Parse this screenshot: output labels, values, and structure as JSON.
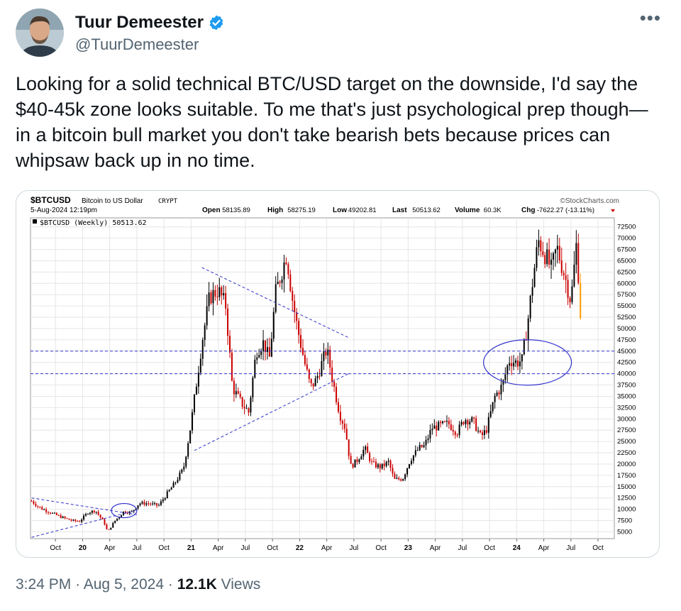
{
  "author": {
    "name": "Tuur Demeester",
    "handle": "@TuurDemeester",
    "avatar_icon": "profile-photo"
  },
  "tweet": {
    "text": "Looking for a solid technical BTC/USD target on the downside, I'd say the $40-45k zone looks suitable. To me that's just psychological prep though—in a bitcoin bull market you don't take bearish bets because prices can whipsaw back up in no time."
  },
  "meta": {
    "time": "3:24 PM",
    "date": "Aug 5, 2024",
    "views_count": "12.1K",
    "views_label": "Views",
    "sep": "·"
  },
  "chart_data": {
    "type": "candlestick",
    "symbol": "$BTCUSD",
    "symbol_desc": "Bitcoin to US Dollar",
    "exchange": "CRYPT",
    "source": "©StockCharts.com",
    "datetime": "5-Aug-2024 12:19pm",
    "stats": {
      "open_label": "Open",
      "open": "58135.89",
      "high_label": "High",
      "high": "58275.19",
      "low_label": "Low",
      "low": "49202.81",
      "last_label": "Last",
      "last": "50513.62",
      "volume_label": "Volume",
      "volume": "60.3K",
      "chg_label": "Chg",
      "chg": "-7622.27 (-13.11%)"
    },
    "legend": "$BTCUSD (Weekly) 50513.62",
    "ylim": [
      3500,
      74500
    ],
    "y_ticks": [
      5000,
      7500,
      10000,
      12500,
      15000,
      17500,
      20000,
      22500,
      25000,
      27500,
      30000,
      32500,
      35000,
      37500,
      40000,
      42500,
      45000,
      47500,
      50000,
      52500,
      55000,
      57500,
      60000,
      62500,
      65000,
      67500,
      70000,
      72500
    ],
    "x_ticks": [
      {
        "label": "Oct",
        "t": 0.75
      },
      {
        "label": "20",
        "t": 1.0
      },
      {
        "label": "Apr",
        "t": 1.25
      },
      {
        "label": "Jul",
        "t": 1.5
      },
      {
        "label": "Oct",
        "t": 1.75
      },
      {
        "label": "21",
        "t": 2.0
      },
      {
        "label": "Apr",
        "t": 2.25
      },
      {
        "label": "Jul",
        "t": 2.5
      },
      {
        "label": "Oct",
        "t": 2.75
      },
      {
        "label": "22",
        "t": 3.0
      },
      {
        "label": "Apr",
        "t": 3.25
      },
      {
        "label": "Jul",
        "t": 3.5
      },
      {
        "label": "Oct",
        "t": 3.75
      },
      {
        "label": "23",
        "t": 4.0
      },
      {
        "label": "Apr",
        "t": 4.25
      },
      {
        "label": "Jul",
        "t": 4.5
      },
      {
        "label": "Oct",
        "t": 4.75
      },
      {
        "label": "24",
        "t": 5.0
      },
      {
        "label": "Apr",
        "t": 5.25
      },
      {
        "label": "Jul",
        "t": 5.5
      },
      {
        "label": "Oct",
        "t": 5.75
      }
    ],
    "xlim": [
      0.52,
      5.9
    ],
    "price_path": [
      [
        0.53,
        11800
      ],
      [
        0.6,
        10400
      ],
      [
        0.7,
        9300
      ],
      [
        0.8,
        8300
      ],
      [
        0.9,
        7500
      ],
      [
        0.97,
        7300
      ],
      [
        1.05,
        9300
      ],
      [
        1.12,
        9700
      ],
      [
        1.2,
        7000
      ],
      [
        1.23,
        5000
      ],
      [
        1.3,
        7500
      ],
      [
        1.38,
        9500
      ],
      [
        1.45,
        9300
      ],
      [
        1.52,
        11300
      ],
      [
        1.6,
        11300
      ],
      [
        1.7,
        10800
      ],
      [
        1.78,
        13500
      ],
      [
        1.85,
        15800
      ],
      [
        1.93,
        19000
      ],
      [
        2.0,
        29000
      ],
      [
        2.05,
        38000
      ],
      [
        2.1,
        47000
      ],
      [
        2.17,
        57000
      ],
      [
        2.25,
        58500
      ],
      [
        2.32,
        55000
      ],
      [
        2.38,
        37000
      ],
      [
        2.45,
        34000
      ],
      [
        2.53,
        31500
      ],
      [
        2.6,
        45000
      ],
      [
        2.67,
        47000
      ],
      [
        2.72,
        43000
      ],
      [
        2.78,
        58000
      ],
      [
        2.84,
        63000
      ],
      [
        2.88,
        66500
      ],
      [
        2.93,
        57000
      ],
      [
        2.98,
        50000
      ],
      [
        3.05,
        42000
      ],
      [
        3.1,
        37000
      ],
      [
        3.15,
        38500
      ],
      [
        3.2,
        42000
      ],
      [
        3.25,
        45500
      ],
      [
        3.3,
        39000
      ],
      [
        3.37,
        31000
      ],
      [
        3.42,
        28000
      ],
      [
        3.47,
        19500
      ],
      [
        3.52,
        20500
      ],
      [
        3.6,
        23500
      ],
      [
        3.67,
        20000
      ],
      [
        3.75,
        19300
      ],
      [
        3.82,
        20500
      ],
      [
        3.87,
        16500
      ],
      [
        3.95,
        16800
      ],
      [
        4.02,
        21000
      ],
      [
        4.1,
        23500
      ],
      [
        4.15,
        24000
      ],
      [
        4.22,
        28000
      ],
      [
        4.3,
        28500
      ],
      [
        4.37,
        29000
      ],
      [
        4.45,
        27000
      ],
      [
        4.52,
        30000
      ],
      [
        4.6,
        29500
      ],
      [
        4.67,
        26000
      ],
      [
        4.72,
        27500
      ],
      [
        4.8,
        35000
      ],
      [
        4.87,
        37500
      ],
      [
        4.93,
        43000
      ],
      [
        5.0,
        42500
      ],
      [
        5.05,
        43000
      ],
      [
        5.1,
        51000
      ],
      [
        5.15,
        61000
      ],
      [
        5.2,
        69500
      ],
      [
        5.27,
        66000
      ],
      [
        5.32,
        63000
      ],
      [
        5.37,
        68000
      ],
      [
        5.45,
        61000
      ],
      [
        5.5,
        56000
      ],
      [
        5.53,
        63500
      ],
      [
        5.55,
        68500
      ],
      [
        5.58,
        58200
      ],
      [
        5.59,
        50500
      ]
    ],
    "last_candle_color": "#ff9900",
    "annotations": {
      "support_lines": [
        45000,
        40000
      ],
      "zone_ellipse": {
        "t": 5.1,
        "price": 42500
      },
      "small_ellipse": {
        "t": 1.5,
        "price": 9700
      }
    },
    "colors": {
      "up": "#000000",
      "down": "#cc0000",
      "trendline": "#3333cc",
      "grid": "#e6e6e6"
    }
  }
}
